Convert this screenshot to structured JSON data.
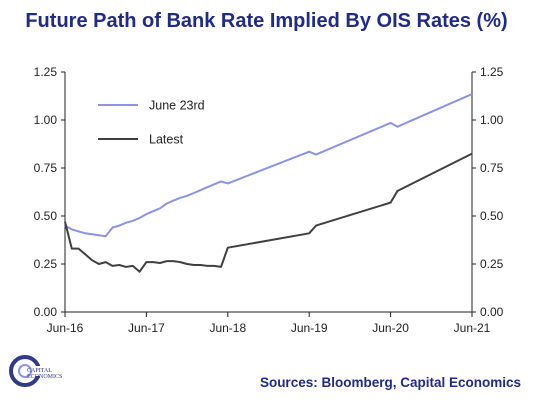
{
  "title": "Future Path of Bank Rate Implied By OIS Rates (%)",
  "source": "Sources: Bloomberg, Capital Economics",
  "logo": {
    "line1": "CAPITAL",
    "line2": "ECONOMICS"
  },
  "chart_data": {
    "type": "line",
    "title": "Future Path of Bank Rate Implied By OIS Rates (%)",
    "x_axis": {
      "ticks": [
        "Jun-16",
        "Jun-17",
        "Jun-18",
        "Jun-19",
        "Jun-20",
        "Jun-21"
      ],
      "range_months_from_jun16": [
        0,
        60
      ]
    },
    "y_axis": {
      "range": [
        0,
        1.25
      ],
      "ticks": [
        "0.00",
        "0.25",
        "0.50",
        "0.75",
        "1.00",
        "1.25"
      ],
      "dual": true
    },
    "grid": false,
    "legend_position": "top-left",
    "series": [
      {
        "name": "June 23rd",
        "color": "#8b93e6",
        "x": [
          "Jun-16",
          "Jul-16",
          "Aug-16",
          "Sep-16",
          "Oct-16",
          "Nov-16",
          "Dec-16",
          "Jan-17",
          "Feb-17",
          "Mar-17",
          "Apr-17",
          "May-17",
          "Jun-17",
          "Jul-17",
          "Aug-17",
          "Sep-17",
          "Oct-17",
          "Nov-17",
          "Dec-17",
          "Jan-18",
          "Feb-18",
          "Mar-18",
          "Apr-18",
          "May-18",
          "Jun-18",
          "Jun-19",
          "Jul-19",
          "Jun-20",
          "Jul-20",
          "Jun-21"
        ],
        "values": [
          0.45,
          0.43,
          0.42,
          0.41,
          0.405,
          0.4,
          0.395,
          0.44,
          0.45,
          0.465,
          0.475,
          0.49,
          0.51,
          0.525,
          0.54,
          0.565,
          0.58,
          0.595,
          0.605,
          0.62,
          0.635,
          0.65,
          0.665,
          0.68,
          0.67,
          0.835,
          0.82,
          0.985,
          0.965,
          1.135
        ]
      },
      {
        "name": "Latest",
        "color": "#404040",
        "x": [
          "Jun-16",
          "Jul-16",
          "Aug-16",
          "Sep-16",
          "Oct-16",
          "Nov-16",
          "Dec-16",
          "Jan-17",
          "Feb-17",
          "Mar-17",
          "Apr-17",
          "May-17",
          "Jun-17",
          "Jul-17",
          "Aug-17",
          "Sep-17",
          "Oct-17",
          "Nov-17",
          "Dec-17",
          "Jan-18",
          "Feb-18",
          "Mar-18",
          "Apr-18",
          "May-18",
          "Jun-18",
          "Jun-19",
          "Jul-19",
          "Jun-20",
          "Jul-20",
          "Jun-21"
        ],
        "values": [
          0.47,
          0.33,
          0.33,
          0.3,
          0.27,
          0.25,
          0.26,
          0.24,
          0.245,
          0.235,
          0.24,
          0.21,
          0.26,
          0.26,
          0.255,
          0.265,
          0.265,
          0.26,
          0.25,
          0.245,
          0.245,
          0.24,
          0.24,
          0.235,
          0.335,
          0.41,
          0.45,
          0.57,
          0.63,
          0.825
        ]
      }
    ]
  }
}
